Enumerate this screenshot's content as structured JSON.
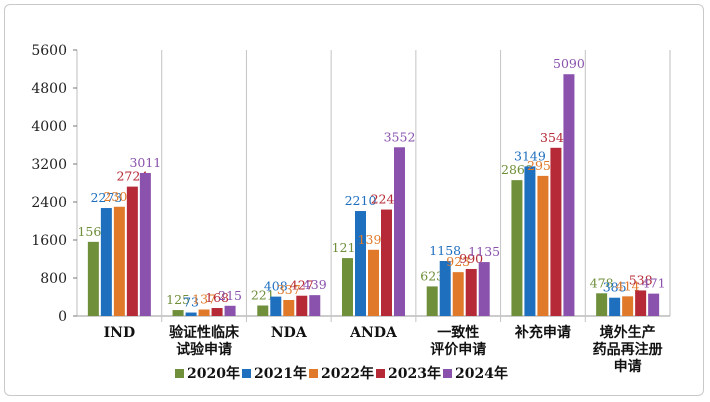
{
  "chart_data": {
    "type": "bar",
    "categories": [
      [
        "IND"
      ],
      [
        "验证性临床",
        "试验申请"
      ],
      [
        "NDA"
      ],
      [
        "ANDA"
      ],
      [
        "一致性",
        "评价申请"
      ],
      [
        "补充申请"
      ],
      [
        "境外生产",
        "药品再注册",
        "申请"
      ]
    ],
    "series": [
      {
        "name": "2020年",
        "color": "#6f8f3b",
        "values": [
          1561,
          125,
          221,
          1219,
          623,
          2860,
          478
        ]
      },
      {
        "name": "2021年",
        "color": "#1f6fbf",
        "values": [
          2273,
          73,
          408,
          2210,
          1158,
          3149,
          385
        ]
      },
      {
        "name": "2022年",
        "color": "#e07a2a",
        "values": [
          2300,
          137,
          337,
          1394,
          923,
          2950,
          414
        ]
      },
      {
        "name": "2023年",
        "color": "#b52a36",
        "values": [
          2724,
          168,
          427,
          2241,
          990,
          3541,
          538
        ]
      },
      {
        "name": "2024年",
        "color": "#8a52ad",
        "values": [
          3011,
          215,
          439,
          3552,
          1135,
          5090,
          471
        ]
      }
    ],
    "ylim": [
      0,
      5600
    ],
    "yticks": [
      0,
      800,
      1600,
      2400,
      3200,
      4000,
      4800,
      5600
    ],
    "legend_position": "bottom"
  }
}
